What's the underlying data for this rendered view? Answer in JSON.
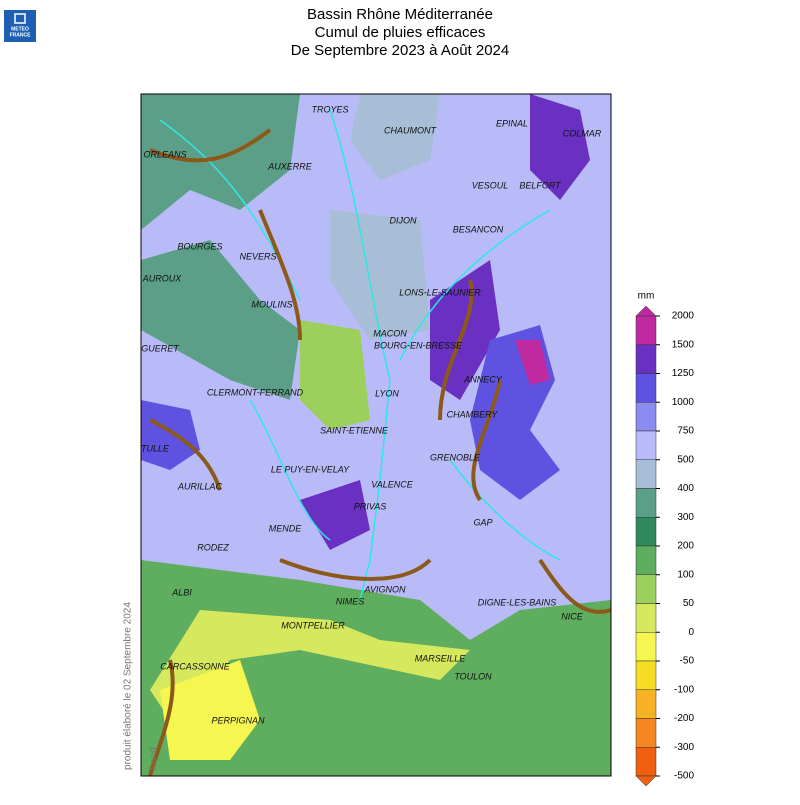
{
  "header": {
    "title": [
      "Bassin Rhône Méditerranée",
      "Cumul de pluies efficaces",
      "De Septembre 2023 à Août 2024"
    ]
  },
  "logo": {
    "lines": [
      "METEO",
      "FRANCE"
    ]
  },
  "side_note": {
    "text": "produit élaboré le 02 Septembre 2024",
    "credit": "Fond"
  },
  "cities": [
    "TROYES",
    "CHAUMONT",
    "EPINAL",
    "COLMAR",
    "ORLEANS",
    "AUXERRE",
    "VESOUL",
    "BELFORT",
    "DIJON",
    "BESANCON",
    "BOURGES",
    "NEVERS",
    "AUROUX",
    "LONS-LE-SAUNIER",
    "MOULINS",
    "MACON",
    "BOURG-EN-BRESSE",
    "GUERET",
    "ANNECY",
    "CLERMONT-FERRAND",
    "LYON",
    "CHAMBERY",
    "SAINT-ETIENNE",
    "TULLE",
    "GRENOBLE",
    "LE PUY-EN-VELAY",
    "AURILLAC",
    "VALENCE",
    "PRIVAS",
    "GAP",
    "MENDE",
    "RODEZ",
    "DIGNE-LES-BAINS",
    "ALBI",
    "AVIGNON",
    "NIMES",
    "NICE",
    "MONTPELLIER",
    "MARSEILLE",
    "CARCASSONNE",
    "TOULON",
    "PERPIGNAN"
  ],
  "legend": {
    "unit": "mm",
    "ticks": [
      2000,
      1500,
      1250,
      1000,
      750,
      500,
      400,
      300,
      200,
      100,
      50,
      0,
      -50,
      -100,
      -200,
      -300,
      -500
    ],
    "colors": [
      "#c02aa0",
      "#6a30c2",
      "#5f52e0",
      "#8a8cf2",
      "#b9bbf8",
      "#a8bdd6",
      "#5c9f88",
      "#2f8a5c",
      "#5fae5f",
      "#9ccf5c",
      "#d6e85e",
      "#f6f650",
      "#f7dd22",
      "#f7b223",
      "#f6861f",
      "#ee5f10"
    ]
  }
}
